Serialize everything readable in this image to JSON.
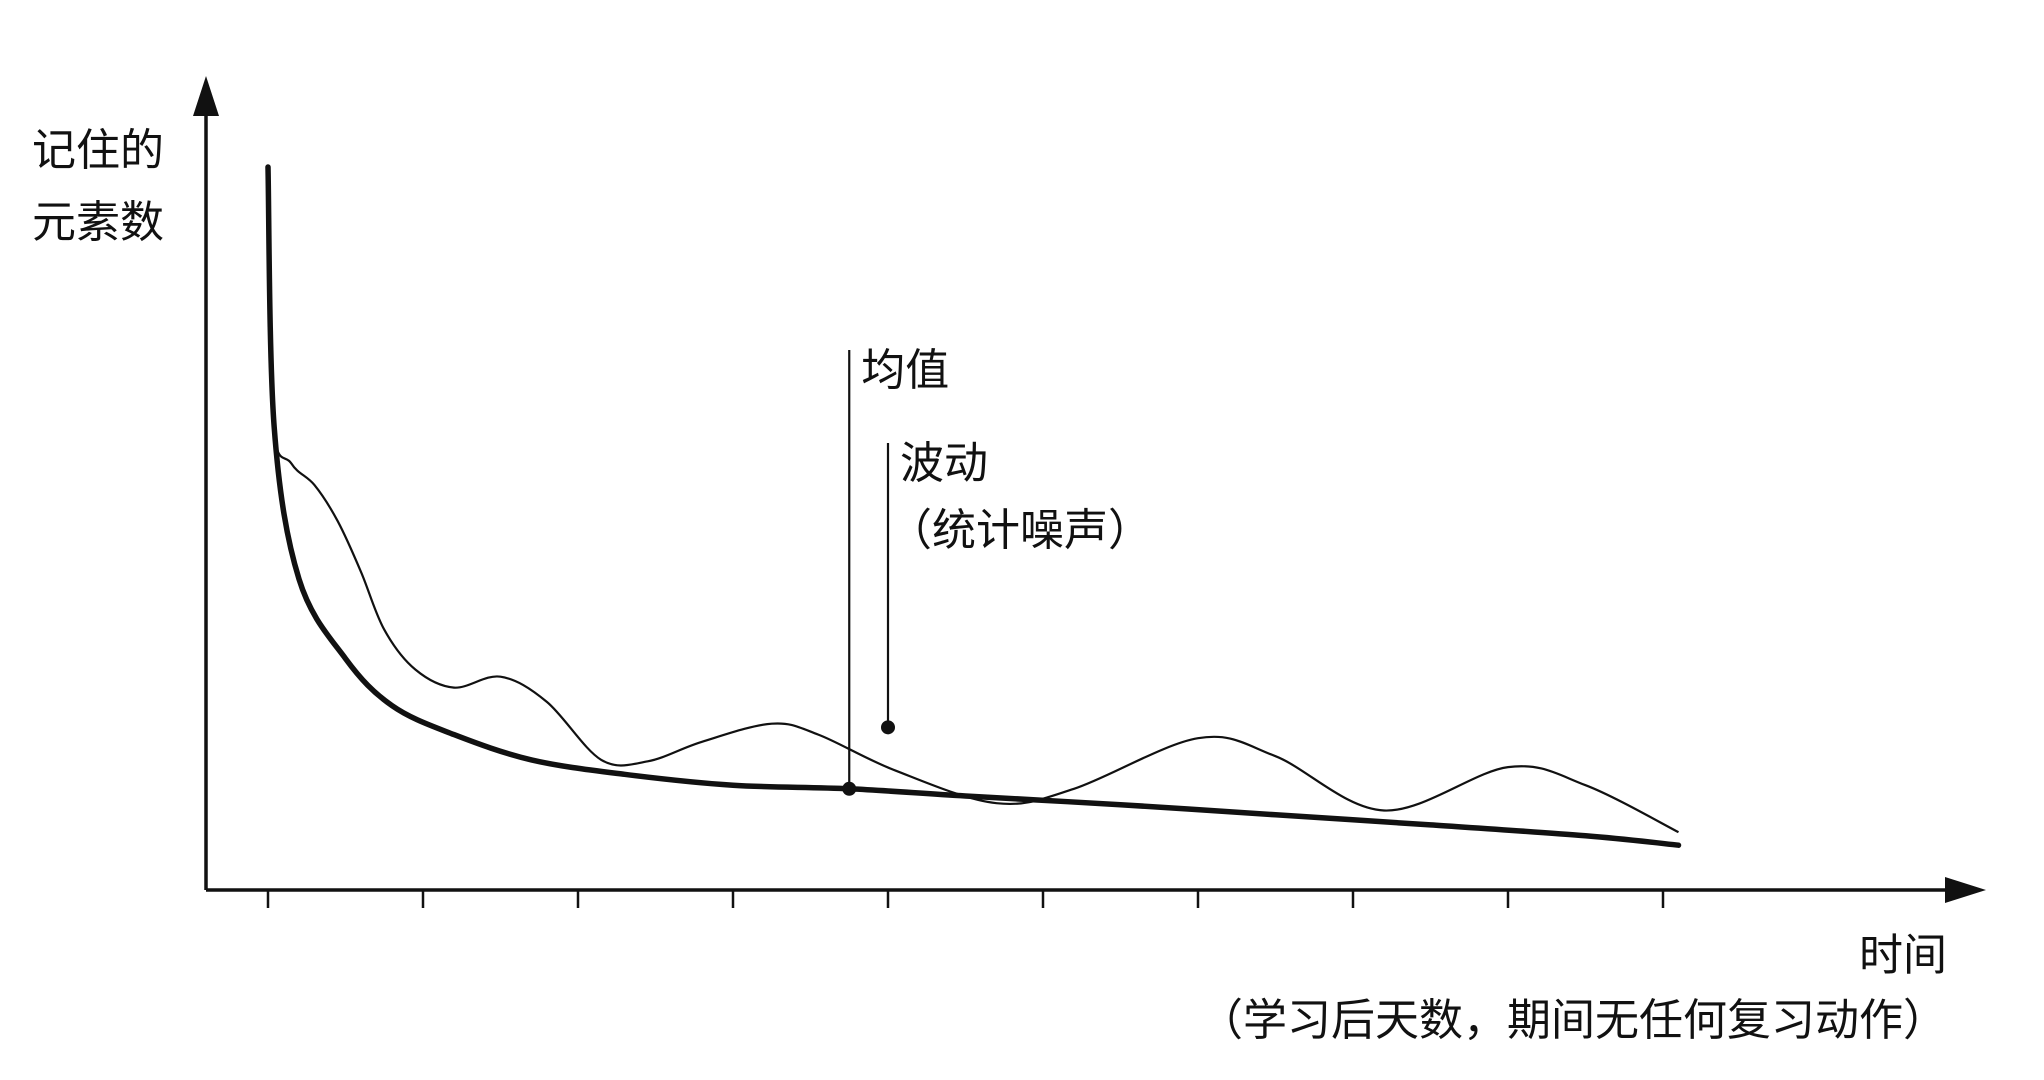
{
  "chart_data": {
    "type": "line",
    "title": "",
    "ylabel_lines": [
      "记住的",
      "元素数"
    ],
    "xlabel_lines": [
      "时间",
      "（学习后天数，期间无任何复习动作）"
    ],
    "x_ticks": 10,
    "grid": false,
    "legend": "none",
    "series": [
      {
        "name": "均值",
        "style": "thick",
        "values": [
          [
            0.0,
            1.0
          ],
          [
            0.04,
            0.64
          ],
          [
            0.2,
            0.43
          ],
          [
            0.5,
            0.32
          ],
          [
            0.8,
            0.255
          ],
          [
            1.2,
            0.215
          ],
          [
            1.7,
            0.18
          ],
          [
            2.3,
            0.16
          ],
          [
            3.0,
            0.145
          ],
          [
            3.75,
            0.14
          ],
          [
            4.5,
            0.13
          ],
          [
            5.5,
            0.118
          ],
          [
            6.5,
            0.104
          ],
          [
            7.5,
            0.09
          ],
          [
            8.5,
            0.075
          ],
          [
            9.1,
            0.062
          ]
        ]
      },
      {
        "name": "波动（统计噪声）",
        "style": "thin",
        "values": [
          [
            0.0,
            1.0
          ],
          [
            0.03,
            0.65
          ],
          [
            0.15,
            0.59
          ],
          [
            0.3,
            0.56
          ],
          [
            0.45,
            0.51
          ],
          [
            0.6,
            0.44
          ],
          [
            0.75,
            0.36
          ],
          [
            0.95,
            0.305
          ],
          [
            1.2,
            0.28
          ],
          [
            1.5,
            0.295
          ],
          [
            1.8,
            0.26
          ],
          [
            2.15,
            0.18
          ],
          [
            2.45,
            0.178
          ],
          [
            2.8,
            0.205
          ],
          [
            3.25,
            0.23
          ],
          [
            3.55,
            0.215
          ],
          [
            4.05,
            0.165
          ],
          [
            4.7,
            0.12
          ],
          [
            5.2,
            0.14
          ],
          [
            6.0,
            0.21
          ],
          [
            6.5,
            0.185
          ],
          [
            7.2,
            0.11
          ],
          [
            8.0,
            0.17
          ],
          [
            8.5,
            0.145
          ],
          [
            9.1,
            0.08
          ]
        ]
      }
    ],
    "annotations": [
      {
        "text": "均值",
        "point": [
          3.75,
          0.14
        ]
      },
      {
        "text_lines": [
          "波动",
          "（统计噪声）"
        ],
        "point": [
          4.0,
          0.225
        ]
      }
    ]
  }
}
